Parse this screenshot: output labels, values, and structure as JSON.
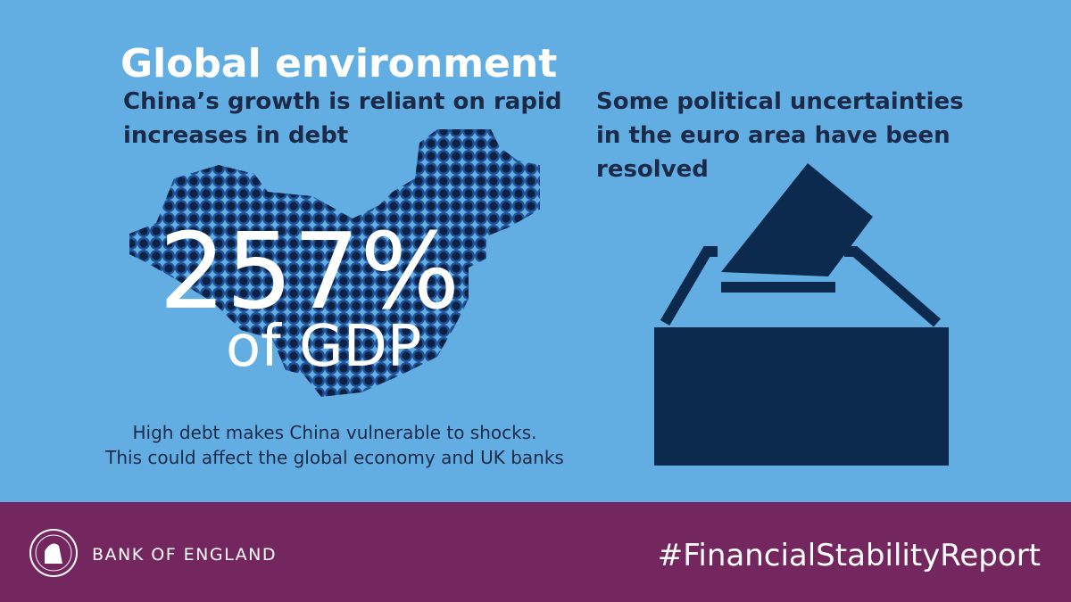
{
  "title": "Global environment",
  "left": {
    "heading_lines": [
      "China’s growth is reliant on rapid",
      "increases in debt"
    ],
    "big_number": "257%",
    "big_caption": "of GDP",
    "note_lines": [
      "High debt makes China vulnerable to shocks.",
      "This could affect the global economy and UK banks"
    ]
  },
  "right": {
    "heading_lines": [
      "Some political uncertainties",
      "in the euro area have been",
      "resolved"
    ]
  },
  "footer": {
    "brand": "BANK OF ENGLAND",
    "hashtag": "#FinancialStabilityReport"
  }
}
